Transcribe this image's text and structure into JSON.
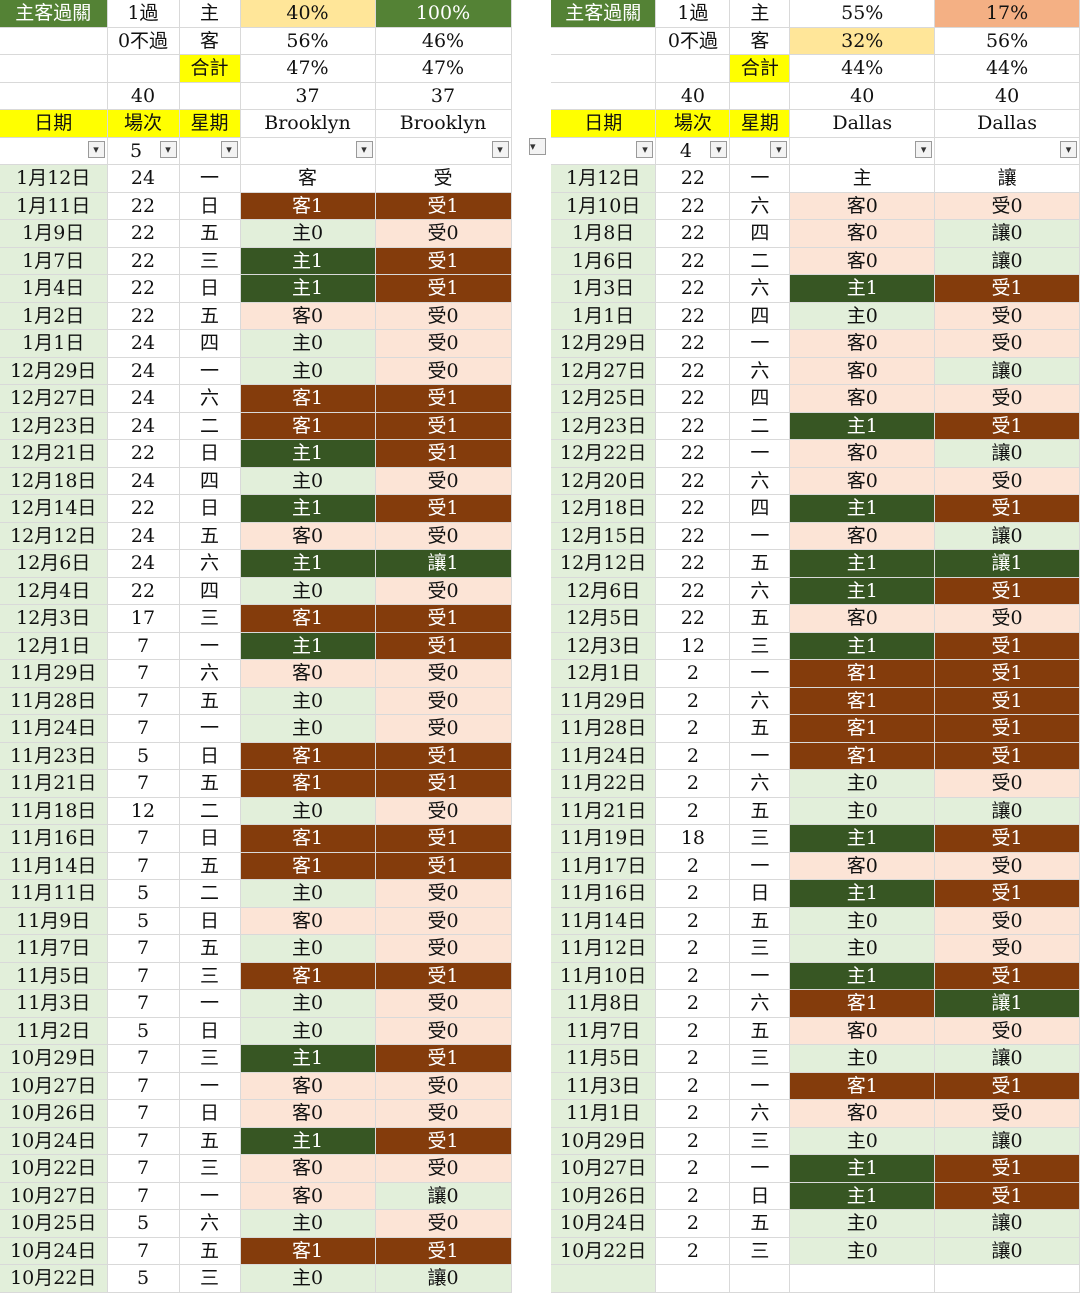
{
  "colors": {
    "light_green": "#e2efda",
    "pink": "#fce4d6",
    "brown": "#843c0c",
    "dark_green": "#375623",
    "header_yellow": "#ffff00",
    "title_green": "#548235",
    "gold": "#ffe699",
    "salmon": "#f4b084"
  },
  "left": {
    "summary": [
      [
        {
          "t": "主客過關",
          "c": "top"
        },
        {
          "t": "1過"
        },
        {
          "t": "主"
        },
        {
          "t": "40%",
          "c": "gold"
        },
        {
          "t": "100%",
          "c": "top"
        }
      ],
      [
        {
          "t": ""
        },
        {
          "t": "0不過"
        },
        {
          "t": "客"
        },
        {
          "t": "56%"
        },
        {
          "t": "46%"
        }
      ],
      [
        {
          "t": ""
        },
        {
          "t": ""
        },
        {
          "t": "合計",
          "c": "yel"
        },
        {
          "t": "47%"
        },
        {
          "t": "47%"
        }
      ],
      [
        {
          "t": ""
        },
        {
          "t": "40"
        },
        {
          "t": ""
        },
        {
          "t": "37"
        },
        {
          "t": "37"
        }
      ]
    ],
    "header": [
      "日期",
      "場次",
      "星期",
      "Brooklyn",
      "Brooklyn"
    ],
    "filter_value": "5",
    "top_row": {
      "date": "1月12日",
      "game": "24",
      "wd": "一",
      "a": "客",
      "b": "受"
    },
    "rows": [
      [
        "1月11日",
        "22",
        "日",
        "客1",
        "br",
        "受1",
        "br"
      ],
      [
        "1月9日",
        "22",
        "五",
        "主0",
        "lg",
        "受0",
        "pk"
      ],
      [
        "1月7日",
        "22",
        "三",
        "主1",
        "dg",
        "受1",
        "br"
      ],
      [
        "1月4日",
        "22",
        "日",
        "主1",
        "dg",
        "受1",
        "br"
      ],
      [
        "1月2日",
        "22",
        "五",
        "客0",
        "pk",
        "受0",
        "pk"
      ],
      [
        "1月1日",
        "24",
        "四",
        "主0",
        "lg",
        "受0",
        "pk"
      ],
      [
        "12月29日",
        "24",
        "一",
        "主0",
        "lg",
        "受0",
        "pk"
      ],
      [
        "12月27日",
        "24",
        "六",
        "客1",
        "br",
        "受1",
        "br"
      ],
      [
        "12月23日",
        "24",
        "二",
        "客1",
        "br",
        "受1",
        "br"
      ],
      [
        "12月21日",
        "22",
        "日",
        "主1",
        "dg",
        "受1",
        "br"
      ],
      [
        "12月18日",
        "24",
        "四",
        "主0",
        "lg",
        "受0",
        "pk"
      ],
      [
        "12月14日",
        "22",
        "日",
        "主1",
        "dg",
        "受1",
        "br"
      ],
      [
        "12月12日",
        "24",
        "五",
        "客0",
        "pk",
        "受0",
        "pk"
      ],
      [
        "12月6日",
        "24",
        "六",
        "主1",
        "dg",
        "讓1",
        "dg"
      ],
      [
        "12月4日",
        "22",
        "四",
        "主0",
        "lg",
        "受0",
        "pk"
      ],
      [
        "12月3日",
        "17",
        "三",
        "客1",
        "br",
        "受1",
        "br"
      ],
      [
        "12月1日",
        "7",
        "一",
        "主1",
        "dg",
        "受1",
        "br"
      ],
      [
        "11月29日",
        "7",
        "六",
        "客0",
        "pk",
        "受0",
        "pk"
      ],
      [
        "11月28日",
        "7",
        "五",
        "主0",
        "lg",
        "受0",
        "pk"
      ],
      [
        "11月24日",
        "7",
        "一",
        "主0",
        "lg",
        "受0",
        "pk"
      ],
      [
        "11月23日",
        "5",
        "日",
        "客1",
        "br",
        "受1",
        "br"
      ],
      [
        "11月21日",
        "7",
        "五",
        "客1",
        "br",
        "受1",
        "br"
      ],
      [
        "11月18日",
        "12",
        "二",
        "主0",
        "lg",
        "受0",
        "pk"
      ],
      [
        "11月16日",
        "7",
        "日",
        "客1",
        "br",
        "受1",
        "br"
      ],
      [
        "11月14日",
        "7",
        "五",
        "客1",
        "br",
        "受1",
        "br"
      ],
      [
        "11月11日",
        "5",
        "二",
        "主0",
        "lg",
        "受0",
        "pk"
      ],
      [
        "11月9日",
        "5",
        "日",
        "客0",
        "pk",
        "受0",
        "pk"
      ],
      [
        "11月7日",
        "7",
        "五",
        "主0",
        "lg",
        "受0",
        "pk"
      ],
      [
        "11月5日",
        "7",
        "三",
        "客1",
        "br",
        "受1",
        "br"
      ],
      [
        "11月3日",
        "7",
        "一",
        "主0",
        "lg",
        "受0",
        "pk"
      ],
      [
        "11月2日",
        "5",
        "日",
        "主0",
        "lg",
        "受0",
        "pk"
      ],
      [
        "10月29日",
        "7",
        "三",
        "主1",
        "dg",
        "受1",
        "br"
      ],
      [
        "10月27日",
        "7",
        "一",
        "客0",
        "pk",
        "受0",
        "pk"
      ],
      [
        "10月26日",
        "7",
        "日",
        "客0",
        "pk",
        "受0",
        "pk"
      ],
      [
        "10月24日",
        "7",
        "五",
        "主1",
        "dg",
        "受1",
        "br"
      ],
      [
        "10月22日",
        "7",
        "三",
        "客0",
        "pk",
        "受0",
        "pk"
      ],
      [
        "10月27日",
        "7",
        "一",
        "客0",
        "pk",
        "讓0",
        "lg"
      ],
      [
        "10月25日",
        "5",
        "六",
        "主0",
        "lg",
        "受0",
        "pk"
      ],
      [
        "10月24日",
        "7",
        "五",
        "客1",
        "br",
        "受1",
        "br"
      ],
      [
        "10月22日",
        "5",
        "三",
        "主0",
        "lg",
        "讓0",
        "lg"
      ]
    ]
  },
  "right": {
    "summary": [
      [
        {
          "t": "主客過關",
          "c": "top"
        },
        {
          "t": "1過"
        },
        {
          "t": "主"
        },
        {
          "t": "55%"
        },
        {
          "t": "17%",
          "c": "sal"
        }
      ],
      [
        {
          "t": ""
        },
        {
          "t": "0不過"
        },
        {
          "t": "客"
        },
        {
          "t": "32%",
          "c": "gold"
        },
        {
          "t": "56%"
        }
      ],
      [
        {
          "t": ""
        },
        {
          "t": ""
        },
        {
          "t": "合計",
          "c": "yel"
        },
        {
          "t": "44%"
        },
        {
          "t": "44%"
        }
      ],
      [
        {
          "t": ""
        },
        {
          "t": "40"
        },
        {
          "t": ""
        },
        {
          "t": "40"
        },
        {
          "t": "40"
        }
      ]
    ],
    "header": [
      "日期",
      "場次",
      "星期",
      "Dallas",
      "Dallas"
    ],
    "filter_value": "4",
    "top_row": {
      "date": "1月12日",
      "game": "22",
      "wd": "一",
      "a": "主",
      "b": "讓"
    },
    "rows": [
      [
        "1月10日",
        "22",
        "六",
        "客0",
        "pk",
        "受0",
        "pk"
      ],
      [
        "1月8日",
        "22",
        "四",
        "客0",
        "pk",
        "讓0",
        "lg"
      ],
      [
        "1月6日",
        "22",
        "二",
        "客0",
        "pk",
        "讓0",
        "lg"
      ],
      [
        "1月3日",
        "22",
        "六",
        "主1",
        "dg",
        "受1",
        "br"
      ],
      [
        "1月1日",
        "22",
        "四",
        "主0",
        "lg",
        "受0",
        "pk"
      ],
      [
        "12月29日",
        "22",
        "一",
        "客0",
        "pk",
        "受0",
        "pk"
      ],
      [
        "12月27日",
        "22",
        "六",
        "客0",
        "pk",
        "讓0",
        "lg"
      ],
      [
        "12月25日",
        "22",
        "四",
        "客0",
        "pk",
        "受0",
        "pk"
      ],
      [
        "12月23日",
        "22",
        "二",
        "主1",
        "dg",
        "受1",
        "br"
      ],
      [
        "12月22日",
        "22",
        "一",
        "客0",
        "pk",
        "讓0",
        "lg"
      ],
      [
        "12月20日",
        "22",
        "六",
        "客0",
        "pk",
        "受0",
        "pk"
      ],
      [
        "12月18日",
        "22",
        "四",
        "主1",
        "dg",
        "受1",
        "br"
      ],
      [
        "12月15日",
        "22",
        "一",
        "客0",
        "pk",
        "讓0",
        "lg"
      ],
      [
        "12月12日",
        "22",
        "五",
        "主1",
        "dg",
        "讓1",
        "dg"
      ],
      [
        "12月6日",
        "22",
        "六",
        "主1",
        "dg",
        "受1",
        "br"
      ],
      [
        "12月5日",
        "22",
        "五",
        "客0",
        "pk",
        "受0",
        "pk"
      ],
      [
        "12月3日",
        "12",
        "三",
        "主1",
        "dg",
        "受1",
        "br"
      ],
      [
        "12月1日",
        "2",
        "一",
        "客1",
        "br",
        "受1",
        "br"
      ],
      [
        "11月29日",
        "2",
        "六",
        "客1",
        "br",
        "受1",
        "br"
      ],
      [
        "11月28日",
        "2",
        "五",
        "客1",
        "br",
        "受1",
        "br"
      ],
      [
        "11月24日",
        "2",
        "一",
        "客1",
        "br",
        "受1",
        "br"
      ],
      [
        "11月22日",
        "2",
        "六",
        "主0",
        "lg",
        "受0",
        "pk"
      ],
      [
        "11月21日",
        "2",
        "五",
        "主0",
        "lg",
        "讓0",
        "lg"
      ],
      [
        "11月19日",
        "18",
        "三",
        "主1",
        "dg",
        "受1",
        "br"
      ],
      [
        "11月17日",
        "2",
        "一",
        "客0",
        "pk",
        "受0",
        "pk"
      ],
      [
        "11月16日",
        "2",
        "日",
        "主1",
        "dg",
        "受1",
        "br"
      ],
      [
        "11月14日",
        "2",
        "五",
        "主0",
        "lg",
        "受0",
        "pk"
      ],
      [
        "11月12日",
        "2",
        "三",
        "主0",
        "lg",
        "受0",
        "pk"
      ],
      [
        "11月10日",
        "2",
        "一",
        "主1",
        "dg",
        "受1",
        "br"
      ],
      [
        "11月8日",
        "2",
        "六",
        "客1",
        "br",
        "讓1",
        "dg"
      ],
      [
        "11月7日",
        "2",
        "五",
        "客0",
        "pk",
        "受0",
        "pk"
      ],
      [
        "11月5日",
        "2",
        "三",
        "主0",
        "lg",
        "讓0",
        "lg"
      ],
      [
        "11月3日",
        "2",
        "一",
        "客1",
        "br",
        "受1",
        "br"
      ],
      [
        "11月1日",
        "2",
        "六",
        "客0",
        "pk",
        "受0",
        "pk"
      ],
      [
        "10月29日",
        "2",
        "三",
        "主0",
        "lg",
        "讓0",
        "lg"
      ],
      [
        "10月27日",
        "2",
        "一",
        "主1",
        "dg",
        "受1",
        "br"
      ],
      [
        "10月26日",
        "2",
        "日",
        "主1",
        "dg",
        "受1",
        "br"
      ],
      [
        "10月24日",
        "2",
        "五",
        "主0",
        "lg",
        "讓0",
        "lg"
      ],
      [
        "10月22日",
        "2",
        "三",
        "主0",
        "lg",
        "讓0",
        "lg"
      ],
      [
        "",
        "",
        "",
        "",
        "wh",
        "",
        "wh"
      ]
    ]
  }
}
